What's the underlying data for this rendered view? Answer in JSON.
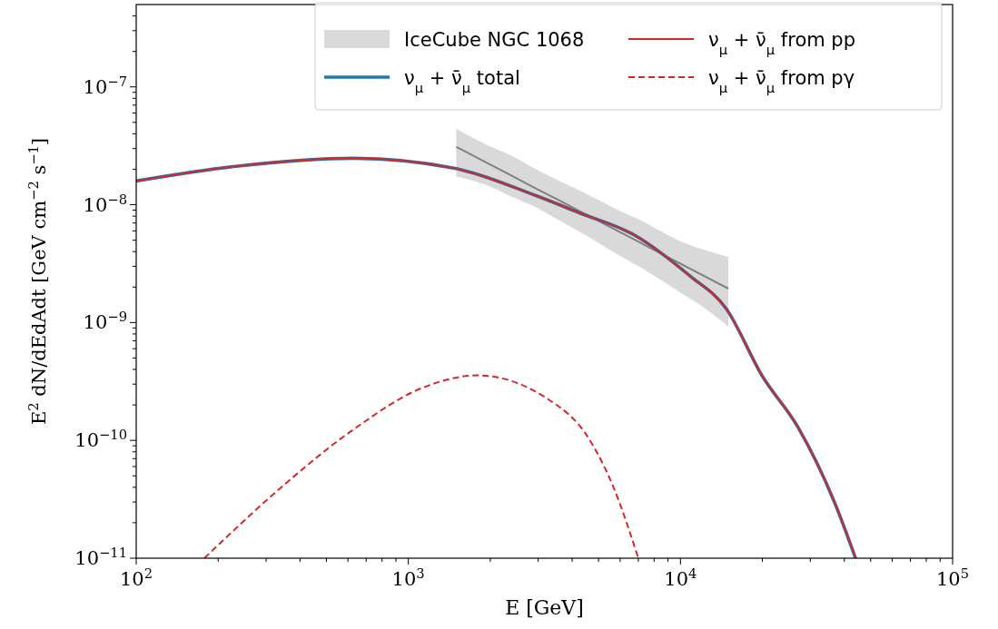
{
  "chart_data": {
    "type": "line",
    "xlabel": "E [GeV]",
    "ylabel": "E$^{2}$ dN/dEdAdt [GeV cm$^{−2}$ s$^{−1}$]",
    "log": "xy",
    "legend": "top right",
    "grid": false,
    "xlim": [
      100,
      100000
    ],
    "ylim": [
      1e-11,
      5e-07
    ],
    "xticks": [
      {
        "value": 100,
        "label": "10$^{2}$"
      },
      {
        "value": 200,
        "label": null
      },
      {
        "value": 300,
        "label": null
      },
      {
        "value": 400,
        "label": null
      },
      {
        "value": 500,
        "label": null
      },
      {
        "value": 600,
        "label": null
      },
      {
        "value": 700,
        "label": null
      },
      {
        "value": 800,
        "label": null
      },
      {
        "value": 900,
        "label": null
      },
      {
        "value": 1000,
        "label": "10$^{3}$"
      },
      {
        "value": 2000,
        "label": null
      },
      {
        "value": 3000,
        "label": null
      },
      {
        "value": 4000,
        "label": null
      },
      {
        "value": 5000,
        "label": null
      },
      {
        "value": 6000,
        "label": null
      },
      {
        "value": 7000,
        "label": null
      },
      {
        "value": 8000,
        "label": null
      },
      {
        "value": 9000,
        "label": null
      },
      {
        "value": 10000,
        "label": "10$^{4}$"
      },
      {
        "value": 20000,
        "label": null
      },
      {
        "value": 30000,
        "label": null
      },
      {
        "value": 40000,
        "label": null
      },
      {
        "value": 50000,
        "label": null
      },
      {
        "value": 60000,
        "label": null
      },
      {
        "value": 70000,
        "label": null
      },
      {
        "value": 80000,
        "label": null
      },
      {
        "value": 90000,
        "label": null
      },
      {
        "value": 100000,
        "label": "10$^{5}$"
      }
    ],
    "yticks": [
      {
        "value": 1e-11,
        "label": "10$^{−11}$"
      },
      {
        "value": 2e-11,
        "label": null
      },
      {
        "value": 3e-11,
        "label": null
      },
      {
        "value": 4e-11,
        "label": null
      },
      {
        "value": 5e-11,
        "label": null
      },
      {
        "value": 6e-11,
        "label": null
      },
      {
        "value": 7e-11,
        "label": null
      },
      {
        "value": 8e-11,
        "label": null
      },
      {
        "value": 9e-11,
        "label": null
      },
      {
        "value": 1e-10,
        "label": "10$^{−10}$"
      },
      {
        "value": 2e-10,
        "label": null
      },
      {
        "value": 3e-10,
        "label": null
      },
      {
        "value": 4e-10,
        "label": null
      },
      {
        "value": 5e-10,
        "label": null
      },
      {
        "value": 6e-10,
        "label": null
      },
      {
        "value": 7e-10,
        "label": null
      },
      {
        "value": 8e-10,
        "label": null
      },
      {
        "value": 9e-10,
        "label": null
      },
      {
        "value": 1e-09,
        "label": "10$^{−9}$"
      },
      {
        "value": 2e-09,
        "label": null
      },
      {
        "value": 3e-09,
        "label": null
      },
      {
        "value": 4e-09,
        "label": null
      },
      {
        "value": 5e-09,
        "label": null
      },
      {
        "value": 6e-09,
        "label": null
      },
      {
        "value": 7e-09,
        "label": null
      },
      {
        "value": 8e-09,
        "label": null
      },
      {
        "value": 9e-09,
        "label": null
      },
      {
        "value": 1e-08,
        "label": "10$^{−8}$"
      },
      {
        "value": 2e-08,
        "label": null
      },
      {
        "value": 3e-08,
        "label": null
      },
      {
        "value": 4e-08,
        "label": null
      },
      {
        "value": 5e-08,
        "label": null
      },
      {
        "value": 6e-08,
        "label": null
      },
      {
        "value": 7e-08,
        "label": null
      },
      {
        "value": 8e-08,
        "label": null
      },
      {
        "value": 9e-08,
        "label": null
      },
      {
        "value": 1e-07,
        "label": "10$^{−7}$"
      },
      {
        "value": 2e-07,
        "label": null
      },
      {
        "value": 3e-07,
        "label": null
      },
      {
        "value": 4e-07,
        "label": null
      }
    ],
    "series": [
      {
        "name": "IceCube NGC 1068",
        "color": "#808080",
        "x": [
          1500,
          1900,
          2400,
          2950,
          3500,
          4200,
          6100,
          7200,
          8000,
          10000,
          12000,
          15000
        ],
        "values": [
          3.1e-08,
          2.33e-08,
          1.76e-08,
          1.37e-08,
          1.12e-08,
          8.97e-09,
          5.73e-09,
          4.7e-09,
          4.13e-09,
          3.16e-09,
          2.54e-09,
          1.94e-09
        ],
        "upper": [
          4.4e-08,
          3.3e-08,
          2.6e-08,
          2e-08,
          1.64e-08,
          1.34e-08,
          8.7e-09,
          7.3e-09,
          6.4e-09,
          4.9e-09,
          4.2e-09,
          3.6e-09
        ],
        "lower": [
          1.74e-08,
          1.49e-08,
          1.17e-08,
          9.5e-09,
          7.6e-09,
          6e-09,
          3.6e-09,
          2.9e-09,
          2.5e-09,
          1.8e-09,
          1.37e-09,
          9.2e-10
        ]
      },
      {
        "name": "ν$_{μ}$ + ν̄$_{μ}$ total",
        "color": "#1f77b4",
        "x": [
          100,
          233,
          630,
          1470,
          2930,
          4270,
          6800,
          10800,
          14700,
          20000,
          27000,
          37000,
          44000
        ],
        "values": [
          1.59e-08,
          2.12e-08,
          2.48e-08,
          2.04e-08,
          1.2e-08,
          8.5e-09,
          5.5e-09,
          2.5e-09,
          1.32e-09,
          3.5e-10,
          1.3e-10,
          2.9e-11,
          1e-11
        ]
      },
      {
        "name": "ν$_{μ}$ + ν̄$_{μ}$ from pp",
        "color": "#d62728",
        "line_style": "solid",
        "x": [
          100,
          233,
          630,
          1470,
          2930,
          4270,
          6800,
          10800,
          14700,
          20000,
          27000,
          37000,
          44000
        ],
        "values": [
          1.59e-08,
          2.12e-08,
          2.48e-08,
          2.04e-08,
          1.2e-08,
          8.5e-09,
          5.5e-09,
          2.5e-09,
          1.32e-09,
          3.5e-10,
          1.3e-10,
          2.9e-11,
          1e-11
        ]
      },
      {
        "name": "ν$_{μ}$ + ν̄$_{μ}$ from pγ",
        "color": "#d62728",
        "line_style": "dashed",
        "x": [
          178,
          337,
          617,
          1130,
          1790,
          3200,
          4650,
          5700,
          7000
        ],
        "values": [
          1e-11,
          3.9e-11,
          1.2e-10,
          2.8e-10,
          3.56e-10,
          2.3e-10,
          1e-10,
          3.9e-11,
          1e-11
        ]
      }
    ]
  }
}
